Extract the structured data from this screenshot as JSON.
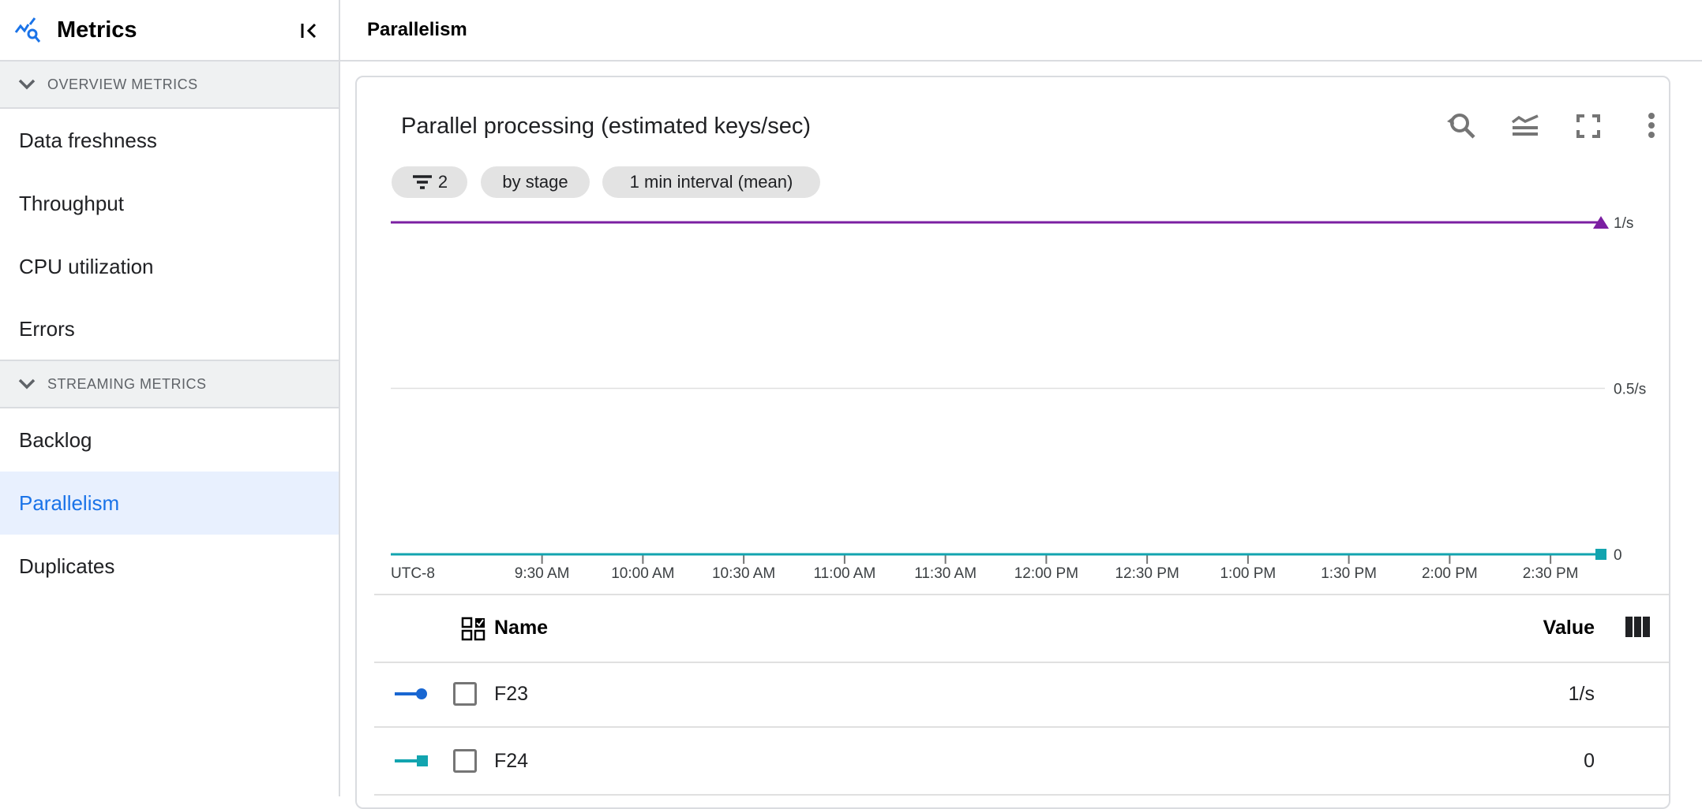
{
  "sidebar": {
    "title": "Metrics",
    "sections": [
      {
        "label": "OVERVIEW METRICS",
        "items": [
          "Data freshness",
          "Throughput",
          "CPU utilization",
          "Errors"
        ]
      },
      {
        "label": "STREAMING METRICS",
        "items": [
          "Backlog",
          "Parallelism",
          "Duplicates"
        ]
      }
    ],
    "active_item": "Parallelism"
  },
  "header": {
    "title": "Parallelism"
  },
  "card": {
    "title": "Parallel processing (estimated keys/sec)",
    "toolbar_icons": [
      "zoom-reset-icon",
      "legend-toggle-icon",
      "fullscreen-icon",
      "more-vert-icon"
    ],
    "chips": {
      "filter_count": "2",
      "group": "by stage",
      "interval": "1 min interval (mean)"
    }
  },
  "chart_data": {
    "type": "line",
    "title": "Parallel processing (estimated keys/sec)",
    "timezone_label": "UTC-8",
    "x_ticks": [
      "9:30 AM",
      "10:00 AM",
      "10:30 AM",
      "11:00 AM",
      "11:30 AM",
      "12:00 PM",
      "12:30 PM",
      "1:00 PM",
      "1:30 PM",
      "2:00 PM",
      "2:30 PM"
    ],
    "xlim": [
      "8:45 AM",
      "2:45 PM"
    ],
    "y_ticks": [
      "0",
      "0.5/s",
      "1/s"
    ],
    "ylim": [
      0,
      1
    ],
    "grid": true,
    "series": [
      {
        "name": "F23",
        "value": 1,
        "color": "#7b1fa2",
        "marker": "triangle"
      },
      {
        "name": "F24",
        "value": 0,
        "color": "#12a4af",
        "marker": "square"
      }
    ]
  },
  "table": {
    "headers": {
      "name": "Name",
      "value": "Value"
    },
    "rows": [
      {
        "name": "F23",
        "value": "1/s",
        "color": "#1967d2",
        "marker": "circle"
      },
      {
        "name": "F24",
        "value": "0",
        "color": "#12a4af",
        "marker": "square"
      }
    ]
  }
}
